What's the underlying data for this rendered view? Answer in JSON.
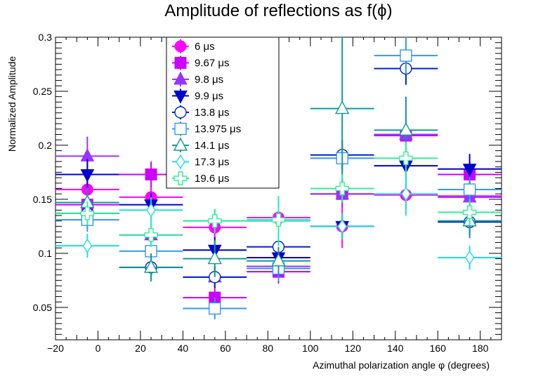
{
  "chart_data": {
    "type": "scatter",
    "title": "Amplitude of reflections as f(ϕ)",
    "xlabel": "Azimuthal polarization angle φ (degrees)",
    "ylabel": "Normalized Amplitude",
    "xlim": [
      -20,
      190
    ],
    "ylim": [
      0.02,
      0.3
    ],
    "xticks": [
      -20,
      0,
      20,
      40,
      60,
      80,
      100,
      120,
      140,
      160,
      180
    ],
    "xtick_labels": [
      "−20",
      "0",
      "20",
      "40",
      "60",
      "80",
      "100",
      "120",
      "140",
      "160",
      "180"
    ],
    "yticks": [
      0.05,
      0.1,
      0.15,
      0.2,
      0.25,
      0.3
    ],
    "ytick_labels": [
      "0.05",
      "0.1",
      "0.15",
      "0.2",
      "0.25",
      "0.3"
    ],
    "x_bin_halfwidth": 15,
    "series": [
      {
        "name": "6 μs",
        "marker": "circle-filled",
        "color": "#ff00ff",
        "x": [
          -5,
          25,
          55,
          85,
          115,
          145,
          175
        ],
        "y": [
          0.159,
          0.152,
          0.124,
          0.133,
          0.125,
          0.154,
          0.153
        ],
        "yerr": [
          0.012,
          0.011,
          0.011,
          0.011,
          0.02,
          0.012,
          0.012
        ]
      },
      {
        "name": "9.67 μs",
        "marker": "square-filled",
        "color": "#cc00ff",
        "x": [
          -5,
          25,
          55,
          85,
          115,
          145,
          175
        ],
        "y": [
          0.145,
          0.173,
          0.059,
          0.083,
          0.155,
          0.209,
          0.173
        ],
        "yerr": [
          0.011,
          0.012,
          0.01,
          0.011,
          0.012,
          0.012,
          0.012
        ]
      },
      {
        "name": "9.8 μs",
        "marker": "triangle-up-filled",
        "color": "#9933ff",
        "x": [
          -5,
          25,
          55,
          85,
          115,
          145,
          175
        ],
        "y": [
          0.19,
          0.117,
          0.078,
          0.088,
          0.155,
          0.21,
          0.152
        ],
        "yerr": [
          0.018,
          0.011,
          0.01,
          0.012,
          0.013,
          0.014,
          0.012
        ]
      },
      {
        "name": "9.9 μs",
        "marker": "triangle-down-filled",
        "color": "#0000cc",
        "x": [
          -5,
          25,
          55,
          85,
          115,
          145,
          175
        ],
        "y": [
          0.173,
          0.145,
          0.103,
          0.096,
          0.125,
          0.181,
          0.178
        ],
        "yerr": [
          0.014,
          0.011,
          0.012,
          0.011,
          0.011,
          0.013,
          0.014
        ]
      },
      {
        "name": "13.8 μs",
        "marker": "circle-open",
        "color": "#0022cc",
        "x": [
          -5,
          25,
          55,
          85,
          115,
          145,
          175
        ],
        "y": [
          0.137,
          0.087,
          0.078,
          0.106,
          0.191,
          0.271,
          0.129
        ],
        "yerr": [
          0.011,
          0.01,
          0.01,
          0.011,
          0.014,
          0.015,
          0.012
        ]
      },
      {
        "name": "13.975 μs",
        "marker": "square-open",
        "color": "#3399ee",
        "x": [
          -5,
          25,
          55,
          85,
          115,
          145,
          175
        ],
        "y": [
          0.131,
          0.102,
          0.049,
          0.086,
          0.188,
          0.283,
          0.159
        ],
        "yerr": [
          0.011,
          0.011,
          0.01,
          0.012,
          0.014,
          0.017,
          0.012
        ]
      },
      {
        "name": "14.1 μs",
        "marker": "triangle-up-open",
        "color": "#119999",
        "x": [
          -5,
          25,
          55,
          85,
          115,
          145,
          175
        ],
        "y": [
          0.147,
          0.087,
          0.095,
          0.093,
          0.234,
          0.214,
          0.13
        ],
        "yerr": [
          0.014,
          0.013,
          0.017,
          0.013,
          0.07,
          0.031,
          0.016
        ]
      },
      {
        "name": "17.3 μs",
        "marker": "diamond-open",
        "color": "#22dddd",
        "x": [
          -5,
          25,
          55,
          85,
          115,
          145,
          175
        ],
        "y": [
          0.107,
          0.14,
          0.13,
          0.13,
          0.125,
          0.155,
          0.096
        ],
        "yerr": [
          0.011,
          0.012,
          0.011,
          0.023,
          0.012,
          0.02,
          0.011
        ]
      },
      {
        "name": "19.6 μs",
        "marker": "cross-open",
        "color": "#33ee99",
        "x": [
          -5,
          25,
          55,
          85,
          115,
          145,
          175
        ],
        "y": [
          0.137,
          0.117,
          0.13,
          0.131,
          0.16,
          0.188,
          0.138
        ],
        "yerr": [
          0.011,
          0.011,
          0.011,
          0.012,
          0.013,
          0.015,
          0.012
        ]
      }
    ],
    "legend_position": "top-left inside plot",
    "grid": false
  }
}
